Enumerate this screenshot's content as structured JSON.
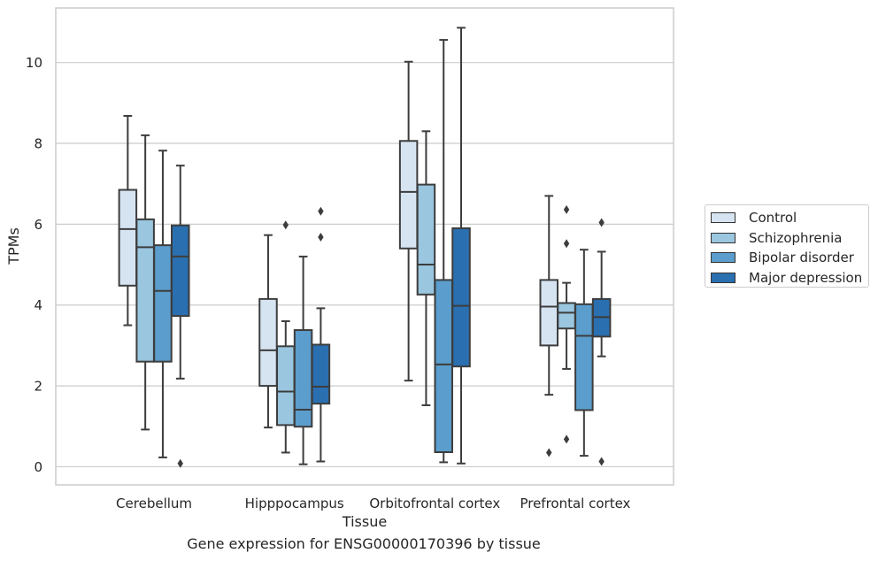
{
  "chart_data": {
    "type": "box",
    "title": "Gene expression for ENSG00000170396 by tissue",
    "xlabel": "Tissue",
    "ylabel": "TPMs",
    "ylim": [
      -0.45,
      11.35
    ],
    "yticks": [
      0,
      2,
      4,
      6,
      8,
      10
    ],
    "grid": true,
    "legend_position": "right",
    "categories": [
      "Cerebellum",
      "Hipppocampus",
      "Orbitofrontal cortex",
      "Prefrontal cortex"
    ],
    "series": [
      {
        "name": "Control",
        "color": "#d6e4f2",
        "boxes": [
          {
            "whisker_low": 3.5,
            "q1": 4.48,
            "median": 5.88,
            "q3": 6.85,
            "whisker_high": 8.68,
            "outliers": []
          },
          {
            "whisker_low": 0.97,
            "q1": 2.0,
            "median": 2.88,
            "q3": 4.15,
            "whisker_high": 5.73,
            "outliers": []
          },
          {
            "whisker_low": 2.13,
            "q1": 5.4,
            "median": 6.8,
            "q3": 8.06,
            "whisker_high": 10.02,
            "outliers": []
          },
          {
            "whisker_low": 1.78,
            "q1": 3.0,
            "median": 3.96,
            "q3": 4.62,
            "whisker_high": 6.7,
            "outliers": [
              0.35
            ]
          }
        ]
      },
      {
        "name": "Schizophrenia",
        "color": "#9ac6df",
        "boxes": [
          {
            "whisker_low": 0.92,
            "q1": 2.6,
            "median": 5.43,
            "q3": 6.12,
            "whisker_high": 8.2,
            "outliers": []
          },
          {
            "whisker_low": 0.35,
            "q1": 1.03,
            "median": 1.86,
            "q3": 2.98,
            "whisker_high": 3.6,
            "outliers": [
              5.98
            ]
          },
          {
            "whisker_low": 1.52,
            "q1": 4.26,
            "median": 5.0,
            "q3": 6.98,
            "whisker_high": 8.3,
            "outliers": []
          },
          {
            "whisker_low": 2.42,
            "q1": 3.42,
            "median": 3.81,
            "q3": 4.05,
            "whisker_high": 4.55,
            "outliers": [
              0.68,
              5.52,
              6.36
            ]
          }
        ]
      },
      {
        "name": "Bipolar disorder",
        "color": "#5b9dcc",
        "boxes": [
          {
            "whisker_low": 0.23,
            "q1": 2.6,
            "median": 4.35,
            "q3": 5.48,
            "whisker_high": 7.82,
            "outliers": []
          },
          {
            "whisker_low": 0.06,
            "q1": 0.99,
            "median": 1.41,
            "q3": 3.38,
            "whisker_high": 5.2,
            "outliers": []
          },
          {
            "whisker_low": 0.11,
            "q1": 0.36,
            "median": 2.53,
            "q3": 4.62,
            "whisker_high": 10.56,
            "outliers": []
          },
          {
            "whisker_low": 0.27,
            "q1": 1.4,
            "median": 3.24,
            "q3": 4.02,
            "whisker_high": 5.37,
            "outliers": []
          }
        ]
      },
      {
        "name": "Major depression",
        "color": "#2a6fb0",
        "boxes": [
          {
            "whisker_low": 2.18,
            "q1": 3.73,
            "median": 5.2,
            "q3": 5.97,
            "whisker_high": 7.45,
            "outliers": [
              0.08
            ]
          },
          {
            "whisker_low": 0.13,
            "q1": 1.56,
            "median": 1.98,
            "q3": 3.02,
            "whisker_high": 3.92,
            "outliers": [
              5.68,
              6.32
            ]
          },
          {
            "whisker_low": 0.08,
            "q1": 2.48,
            "median": 3.98,
            "q3": 5.9,
            "whisker_high": 10.86,
            "outliers": []
          },
          {
            "whisker_low": 2.73,
            "q1": 3.22,
            "median": 3.7,
            "q3": 4.15,
            "whisker_high": 5.32,
            "outliers": [
              0.13,
              6.04
            ]
          }
        ]
      }
    ]
  }
}
